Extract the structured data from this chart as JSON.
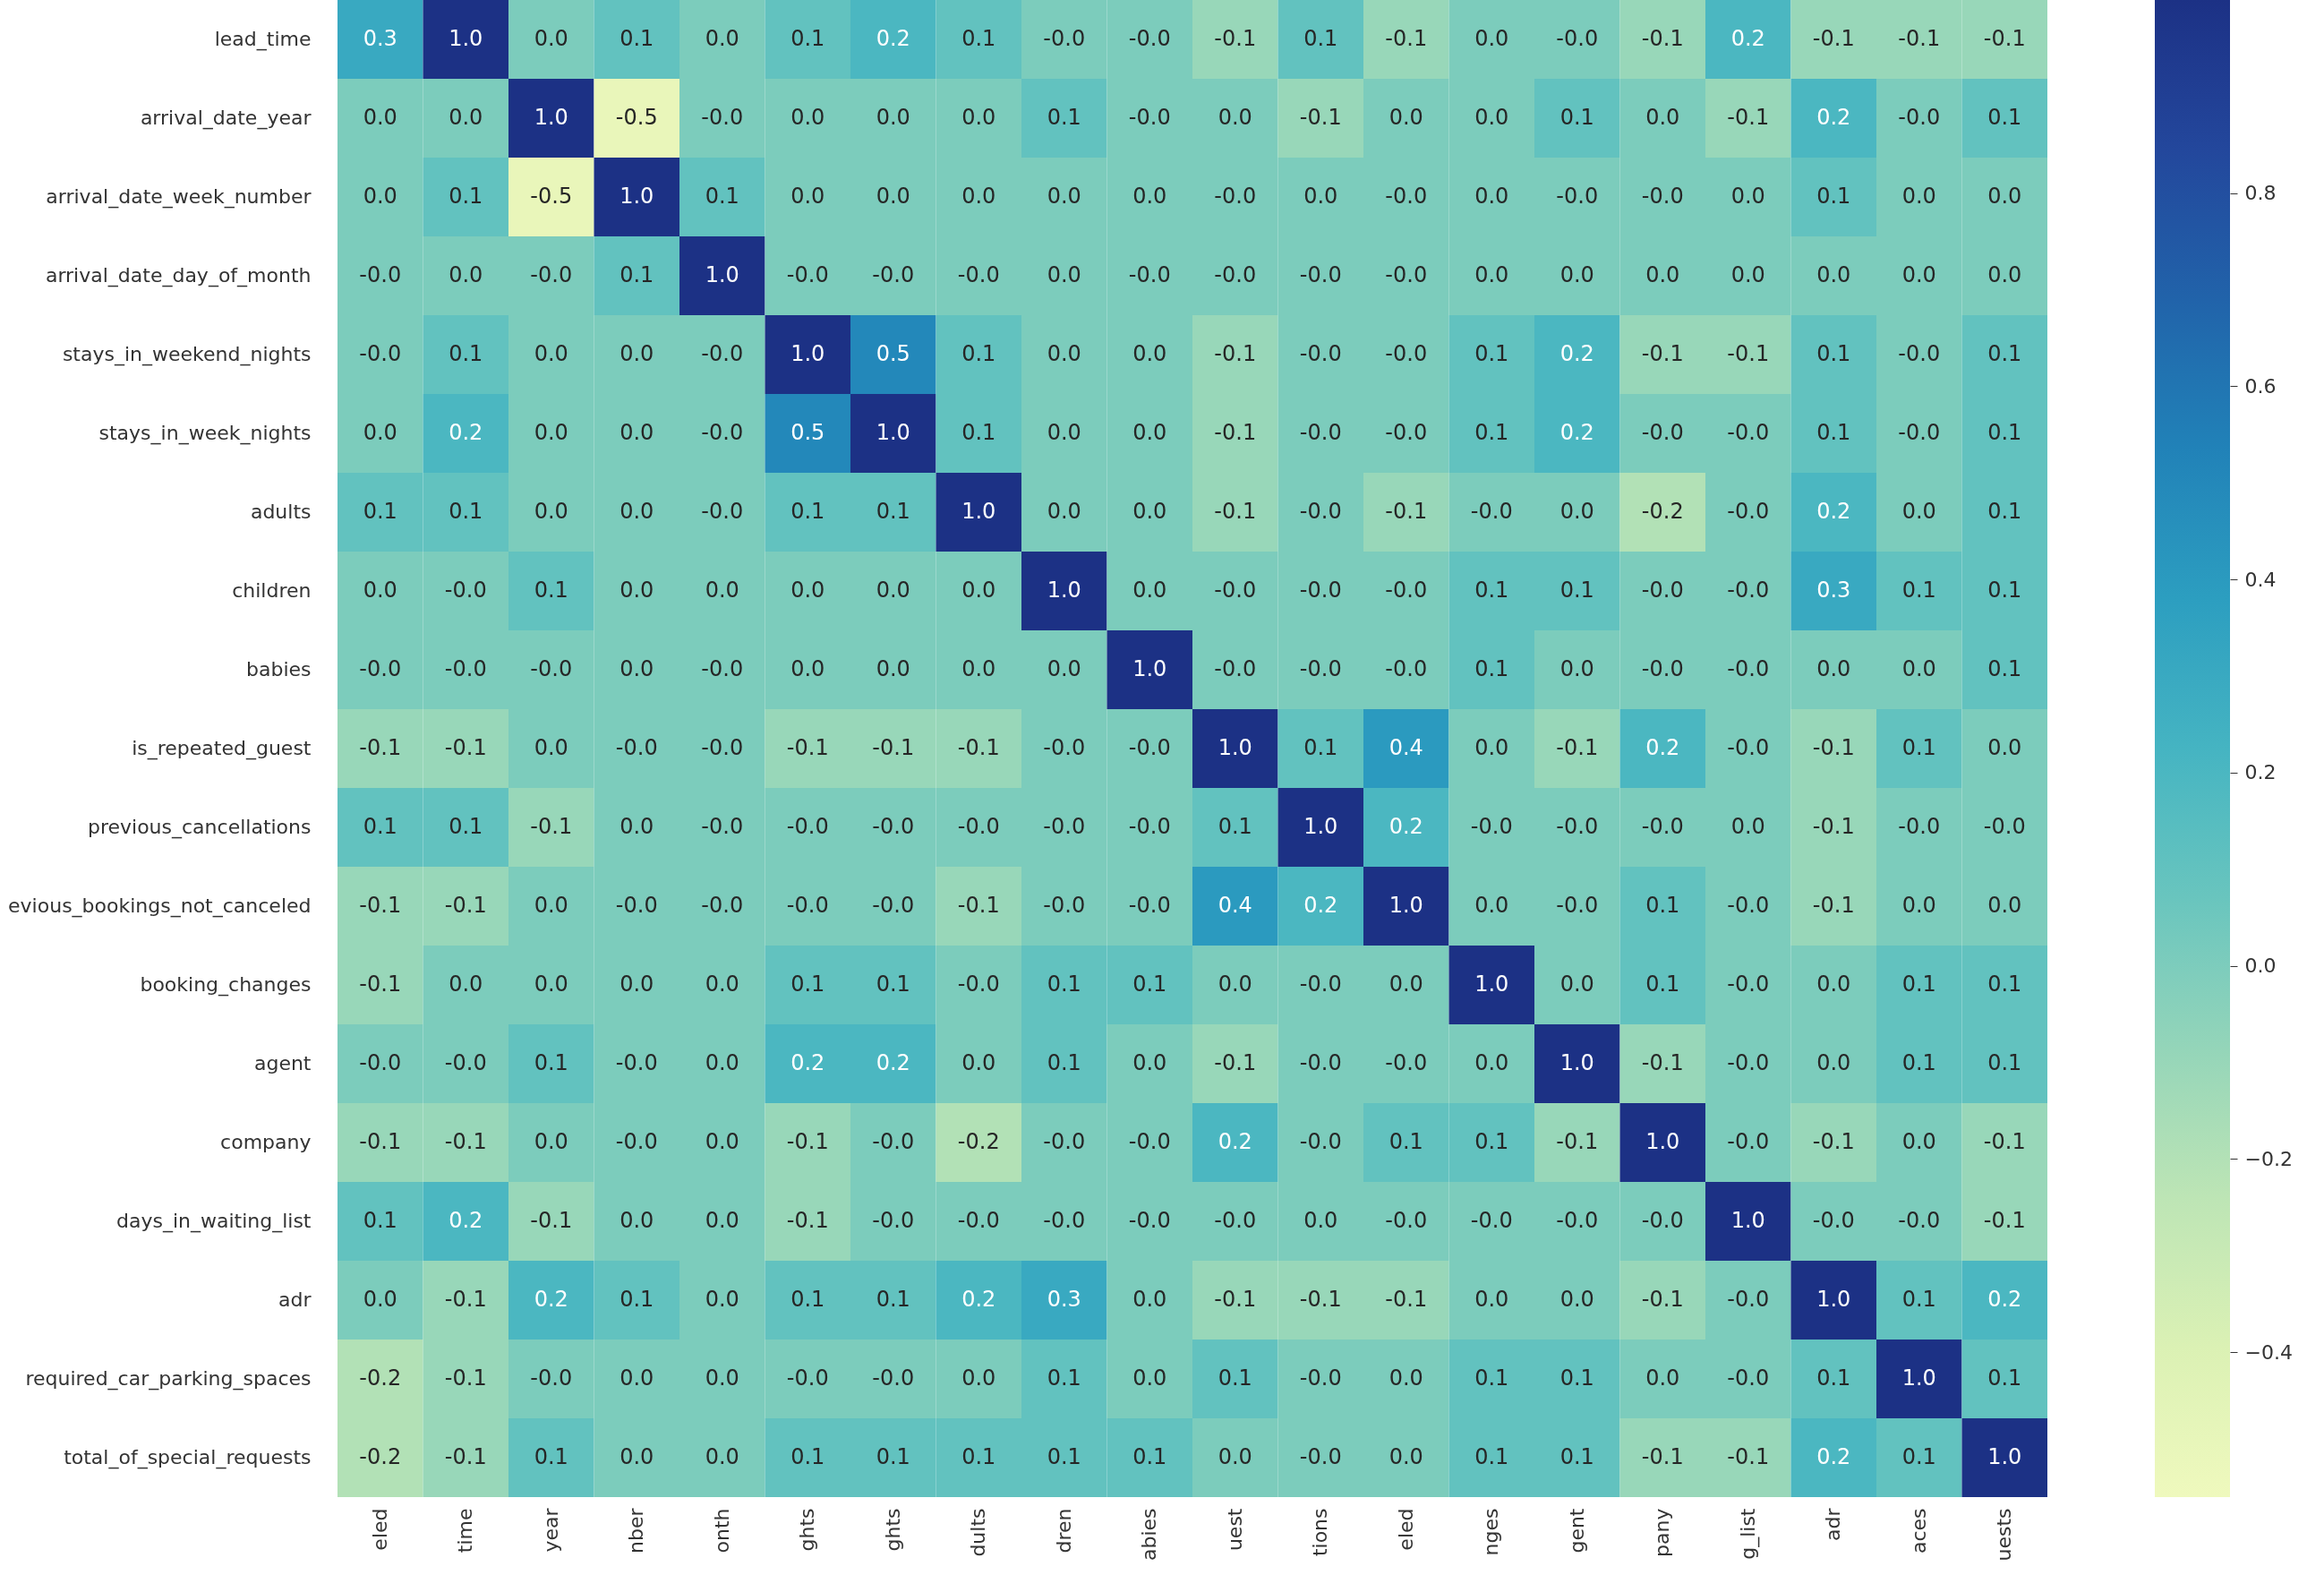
{
  "chart_data": {
    "type": "heatmap",
    "categories": [
      "eled",
      "time",
      "year",
      "nber",
      "onth",
      "ghts",
      "ghts",
      "dults",
      "dren",
      "abies",
      "uest",
      "tions",
      "eled",
      "nges",
      "gent",
      "pany",
      "g_list",
      "adr",
      "aces",
      "uests"
    ],
    "y_categories": [
      "lead_time",
      "arrival_date_year",
      "arrival_date_week_number",
      "arrival_date_day_of_month",
      "stays_in_weekend_nights",
      "stays_in_week_nights",
      "adults",
      "children",
      "babies",
      "is_repeated_guest",
      "previous_cancellations",
      "evious_bookings_not_canceled",
      "booking_changes",
      "agent",
      "company",
      "days_in_waiting_list",
      "adr",
      "required_car_parking_spaces",
      "total_of_special_requests"
    ],
    "cells": [
      [
        0.3,
        1.0,
        0.0,
        0.1,
        0.0,
        0.1,
        0.2,
        0.1,
        0.0,
        0.0,
        -0.1,
        0.1,
        -0.1,
        0.0,
        0.0,
        -0.1,
        0.2,
        -0.1,
        -0.1,
        -0.1
      ],
      [
        0.0,
        0.0,
        1.0,
        -0.5,
        0.0,
        0.0,
        0.0,
        0.0,
        0.1,
        0.0,
        0.0,
        -0.1,
        0.0,
        0.0,
        0.1,
        0.0,
        -0.1,
        0.2,
        0.0,
        0.1
      ],
      [
        0.0,
        0.1,
        -0.5,
        1.0,
        0.1,
        0.0,
        0.0,
        0.0,
        0.0,
        0.0,
        0.0,
        0.0,
        0.0,
        0.0,
        0.0,
        0.0,
        0.0,
        0.1,
        0.0,
        0.0
      ],
      [
        0.0,
        0.0,
        0.0,
        0.1,
        1.0,
        0.0,
        0.0,
        0.0,
        0.0,
        0.0,
        0.0,
        0.0,
        0.0,
        0.0,
        0.0,
        0.0,
        0.0,
        0.0,
        0.0,
        0.0
      ],
      [
        0.0,
        0.1,
        0.0,
        0.0,
        0.0,
        1.0,
        0.5,
        0.1,
        0.0,
        0.0,
        -0.1,
        0.0,
        0.0,
        0.1,
        0.2,
        -0.1,
        -0.1,
        0.1,
        0.0,
        0.1
      ],
      [
        0.0,
        0.2,
        0.0,
        0.0,
        0.0,
        0.5,
        1.0,
        0.1,
        0.0,
        0.0,
        -0.1,
        0.0,
        0.0,
        0.1,
        0.2,
        0.0,
        0.0,
        0.1,
        0.0,
        0.1
      ],
      [
        0.1,
        0.1,
        0.0,
        0.0,
        0.0,
        0.1,
        0.1,
        1.0,
        0.0,
        0.0,
        -0.1,
        0.0,
        -0.1,
        0.0,
        0.0,
        -0.2,
        0.0,
        0.2,
        0.0,
        0.1
      ],
      [
        0.0,
        0.0,
        0.1,
        0.0,
        0.0,
        0.0,
        0.0,
        0.0,
        1.0,
        0.0,
        0.0,
        0.0,
        0.0,
        0.1,
        0.1,
        0.0,
        0.0,
        0.3,
        0.1,
        0.1
      ],
      [
        0.0,
        0.0,
        0.0,
        0.0,
        0.0,
        0.0,
        0.0,
        0.0,
        0.0,
        1.0,
        0.0,
        0.0,
        0.0,
        0.1,
        0.0,
        0.0,
        0.0,
        0.0,
        0.0,
        0.1
      ],
      [
        -0.1,
        -0.1,
        0.0,
        0.0,
        0.0,
        -0.1,
        -0.1,
        -0.1,
        0.0,
        0.0,
        1.0,
        0.1,
        0.4,
        0.0,
        -0.1,
        0.2,
        0.0,
        -0.1,
        0.1,
        0.0
      ],
      [
        0.1,
        0.1,
        -0.1,
        0.0,
        0.0,
        0.0,
        0.0,
        0.0,
        0.0,
        0.0,
        0.1,
        1.0,
        0.2,
        0.0,
        0.0,
        0.0,
        0.0,
        -0.1,
        0.0,
        0.0
      ],
      [
        -0.1,
        -0.1,
        0.0,
        0.0,
        0.0,
        0.0,
        0.0,
        -0.1,
        0.0,
        0.0,
        0.4,
        0.2,
        1.0,
        0.0,
        0.0,
        0.1,
        0.0,
        -0.1,
        0.0,
        0.0
      ],
      [
        -0.1,
        0.0,
        0.0,
        0.0,
        0.0,
        0.1,
        0.1,
        0.0,
        0.1,
        0.1,
        0.0,
        0.0,
        0.0,
        1.0,
        0.0,
        0.1,
        0.0,
        0.0,
        0.1,
        0.1
      ],
      [
        0.0,
        0.0,
        0.1,
        0.0,
        0.0,
        0.2,
        0.2,
        0.0,
        0.1,
        0.0,
        -0.1,
        0.0,
        0.0,
        0.0,
        1.0,
        -0.1,
        0.0,
        0.0,
        0.1,
        0.1
      ],
      [
        -0.1,
        -0.1,
        0.0,
        0.0,
        0.0,
        -0.1,
        0.0,
        -0.2,
        0.0,
        0.0,
        0.2,
        0.0,
        0.1,
        0.1,
        -0.1,
        1.0,
        0.0,
        -0.1,
        0.0,
        -0.1
      ],
      [
        0.1,
        0.2,
        -0.1,
        0.0,
        0.0,
        -0.1,
        0.0,
        0.0,
        0.0,
        0.0,
        0.0,
        0.0,
        0.0,
        0.0,
        0.0,
        0.0,
        1.0,
        0.0,
        0.0,
        -0.1
      ],
      [
        0.0,
        -0.1,
        0.2,
        0.1,
        0.0,
        0.1,
        0.1,
        0.2,
        0.3,
        0.0,
        -0.1,
        -0.1,
        -0.1,
        0.0,
        0.0,
        -0.1,
        0.0,
        1.0,
        0.1,
        0.2
      ],
      [
        -0.2,
        -0.1,
        0.0,
        0.0,
        0.0,
        0.0,
        0.0,
        0.0,
        0.1,
        0.0,
        0.1,
        0.0,
        0.0,
        0.1,
        0.1,
        0.0,
        0.0,
        0.1,
        1.0,
        0.1
      ],
      [
        -0.2,
        -0.1,
        0.1,
        0.0,
        0.0,
        0.1,
        0.1,
        0.1,
        0.1,
        0.1,
        0.0,
        0.0,
        0.0,
        0.1,
        0.1,
        -0.1,
        -0.1,
        0.2,
        0.1,
        1.0
      ]
    ],
    "cell_labels": [
      [
        "0.3",
        "1.0",
        "0.0",
        "0.1",
        "0.0",
        "0.1",
        "0.2",
        "0.1",
        "-0.0",
        "-0.0",
        "-0.1",
        "0.1",
        "-0.1",
        "0.0",
        "-0.0",
        "-0.1",
        "0.2",
        "-0.1",
        "-0.1",
        "-0.1"
      ],
      [
        "0.0",
        "0.0",
        "1.0",
        "-0.5",
        "-0.0",
        "0.0",
        "0.0",
        "0.0",
        "0.1",
        "-0.0",
        "0.0",
        "-0.1",
        "0.0",
        "0.0",
        "0.1",
        "0.0",
        "-0.1",
        "0.2",
        "-0.0",
        "0.1"
      ],
      [
        "0.0",
        "0.1",
        "-0.5",
        "1.0",
        "0.1",
        "0.0",
        "0.0",
        "0.0",
        "0.0",
        "0.0",
        "-0.0",
        "0.0",
        "-0.0",
        "0.0",
        "-0.0",
        "-0.0",
        "0.0",
        "0.1",
        "0.0",
        "0.0"
      ],
      [
        "-0.0",
        "0.0",
        "-0.0",
        "0.1",
        "1.0",
        "-0.0",
        "-0.0",
        "-0.0",
        "0.0",
        "-0.0",
        "-0.0",
        "-0.0",
        "-0.0",
        "0.0",
        "0.0",
        "0.0",
        "0.0",
        "0.0",
        "0.0",
        "0.0"
      ],
      [
        "-0.0",
        "0.1",
        "0.0",
        "0.0",
        "-0.0",
        "1.0",
        "0.5",
        "0.1",
        "0.0",
        "0.0",
        "-0.1",
        "-0.0",
        "-0.0",
        "0.1",
        "0.2",
        "-0.1",
        "-0.1",
        "0.1",
        "-0.0",
        "0.1"
      ],
      [
        "0.0",
        "0.2",
        "0.0",
        "0.0",
        "-0.0",
        "0.5",
        "1.0",
        "0.1",
        "0.0",
        "0.0",
        "-0.1",
        "-0.0",
        "-0.0",
        "0.1",
        "0.2",
        "-0.0",
        "-0.0",
        "0.1",
        "-0.0",
        "0.1"
      ],
      [
        "0.1",
        "0.1",
        "0.0",
        "0.0",
        "-0.0",
        "0.1",
        "0.1",
        "1.0",
        "0.0",
        "0.0",
        "-0.1",
        "-0.0",
        "-0.1",
        "-0.0",
        "0.0",
        "-0.2",
        "-0.0",
        "0.2",
        "0.0",
        "0.1"
      ],
      [
        "0.0",
        "-0.0",
        "0.1",
        "0.0",
        "0.0",
        "0.0",
        "0.0",
        "0.0",
        "1.0",
        "0.0",
        "-0.0",
        "-0.0",
        "-0.0",
        "0.1",
        "0.1",
        "-0.0",
        "-0.0",
        "0.3",
        "0.1",
        "0.1"
      ],
      [
        "-0.0",
        "-0.0",
        "-0.0",
        "0.0",
        "-0.0",
        "0.0",
        "0.0",
        "0.0",
        "0.0",
        "1.0",
        "-0.0",
        "-0.0",
        "-0.0",
        "0.1",
        "0.0",
        "-0.0",
        "-0.0",
        "0.0",
        "0.0",
        "0.1"
      ],
      [
        "-0.1",
        "-0.1",
        "0.0",
        "-0.0",
        "-0.0",
        "-0.1",
        "-0.1",
        "-0.1",
        "-0.0",
        "-0.0",
        "1.0",
        "0.1",
        "0.4",
        "0.0",
        "-0.1",
        "0.2",
        "-0.0",
        "-0.1",
        "0.1",
        "0.0"
      ],
      [
        "0.1",
        "0.1",
        "-0.1",
        "0.0",
        "-0.0",
        "-0.0",
        "-0.0",
        "-0.0",
        "-0.0",
        "-0.0",
        "0.1",
        "1.0",
        "0.2",
        "-0.0",
        "-0.0",
        "-0.0",
        "0.0",
        "-0.1",
        "-0.0",
        "-0.0"
      ],
      [
        "-0.1",
        "-0.1",
        "0.0",
        "-0.0",
        "-0.0",
        "-0.0",
        "-0.0",
        "-0.1",
        "-0.0",
        "-0.0",
        "0.4",
        "0.2",
        "1.0",
        "0.0",
        "-0.0",
        "0.1",
        "-0.0",
        "-0.1",
        "0.0",
        "0.0"
      ],
      [
        "-0.1",
        "0.0",
        "0.0",
        "0.0",
        "0.0",
        "0.1",
        "0.1",
        "-0.0",
        "0.1",
        "0.1",
        "0.0",
        "-0.0",
        "0.0",
        "1.0",
        "0.0",
        "0.1",
        "-0.0",
        "0.0",
        "0.1",
        "0.1"
      ],
      [
        "-0.0",
        "-0.0",
        "0.1",
        "-0.0",
        "0.0",
        "0.2",
        "0.2",
        "0.0",
        "0.1",
        "0.0",
        "-0.1",
        "-0.0",
        "-0.0",
        "0.0",
        "1.0",
        "-0.1",
        "-0.0",
        "0.0",
        "0.1",
        "0.1"
      ],
      [
        "-0.1",
        "-0.1",
        "0.0",
        "-0.0",
        "0.0",
        "-0.1",
        "-0.0",
        "-0.2",
        "-0.0",
        "-0.0",
        "0.2",
        "-0.0",
        "0.1",
        "0.1",
        "-0.1",
        "1.0",
        "-0.0",
        "-0.1",
        "0.0",
        "-0.1"
      ],
      [
        "0.1",
        "0.2",
        "-0.1",
        "0.0",
        "0.0",
        "-0.1",
        "-0.0",
        "-0.0",
        "-0.0",
        "-0.0",
        "-0.0",
        "0.0",
        "-0.0",
        "-0.0",
        "-0.0",
        "-0.0",
        "1.0",
        "-0.0",
        "-0.0",
        "-0.1"
      ],
      [
        "0.0",
        "-0.1",
        "0.2",
        "0.1",
        "0.0",
        "0.1",
        "0.1",
        "0.2",
        "0.3",
        "0.0",
        "-0.1",
        "-0.1",
        "-0.1",
        "0.0",
        "0.0",
        "-0.1",
        "-0.0",
        "1.0",
        "0.1",
        "0.2"
      ],
      [
        "-0.2",
        "-0.1",
        "-0.0",
        "0.0",
        "0.0",
        "-0.0",
        "-0.0",
        "0.0",
        "0.1",
        "0.0",
        "0.1",
        "-0.0",
        "0.0",
        "0.1",
        "0.1",
        "0.0",
        "-0.0",
        "0.1",
        "1.0",
        "0.1"
      ],
      [
        "-0.2",
        "-0.1",
        "0.1",
        "0.0",
        "0.0",
        "0.1",
        "0.1",
        "0.1",
        "0.1",
        "0.1",
        "0.0",
        "-0.0",
        "0.0",
        "0.1",
        "0.1",
        "-0.1",
        "-0.1",
        "0.2",
        "0.1",
        "1.0"
      ]
    ],
    "clim": [
      -0.55,
      1.0
    ],
    "cticks": [
      {
        "value": -0.4,
        "label": "−0.4"
      },
      {
        "value": -0.2,
        "label": "−0.2"
      },
      {
        "value": 0,
        "label": "0.0"
      },
      0.2,
      0.4,
      0.6,
      0.8
    ]
  }
}
